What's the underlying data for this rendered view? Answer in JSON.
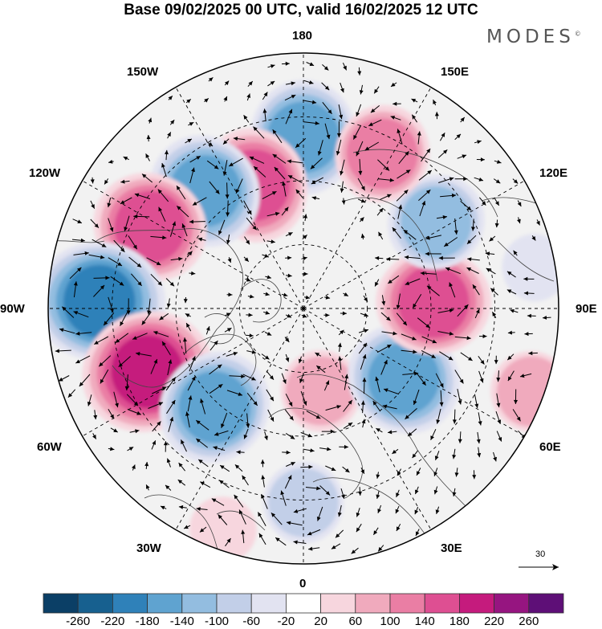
{
  "title": "Base 09/02/2025 00 UTC, valid 16/02/2025 12 UTC",
  "brand": "MODES",
  "brand_mark": "©",
  "longitude_labels": {
    "lon_180": "180",
    "lon_150w": "150W",
    "lon_150e": "150E",
    "lon_120w": "120W",
    "lon_120e": "120E",
    "lon_90w": "90W",
    "lon_90e": "90E",
    "lon_60w": "60W",
    "lon_60e": "60E",
    "lon_30w": "30W",
    "lon_30e": "30E",
    "lon_0": "0"
  },
  "reference_vector": {
    "label": "30"
  },
  "colorbar": {
    "ticks": [
      "-260",
      "-220",
      "-180",
      "-140",
      "-100",
      "-60",
      "-20",
      "20",
      "60",
      "100",
      "140",
      "180",
      "220",
      "260"
    ],
    "colors": [
      "#0b3f66",
      "#17608f",
      "#2f81b9",
      "#5fa3d0",
      "#93bde0",
      "#c2cfe8",
      "#e2e3f1",
      "#ffffff",
      "#f7d6de",
      "#f0aabd",
      "#ea7ea4",
      "#de4f92",
      "#c51b7d",
      "#961580",
      "#5e0f77"
    ]
  },
  "anomalies": [
    {
      "lon": 180,
      "r": 0.67,
      "value": -150
    },
    {
      "lon": -158,
      "r": 0.52,
      "value": 170
    },
    {
      "lon": -140,
      "r": 0.6,
      "value": -160
    },
    {
      "lon": -118,
      "r": 0.68,
      "value": 140
    },
    {
      "lon": -92,
      "r": 0.8,
      "value": -210
    },
    {
      "lon": -68,
      "r": 0.66,
      "value": 200
    },
    {
      "lon": -42,
      "r": 0.52,
      "value": -140
    },
    {
      "lon": 12,
      "r": 0.33,
      "value": 80
    },
    {
      "lon": 0,
      "r": 0.76,
      "value": -90
    },
    {
      "lon": 55,
      "r": 0.48,
      "value": -150
    },
    {
      "lon": 93,
      "r": 0.51,
      "value": 150
    },
    {
      "lon": 123,
      "r": 0.62,
      "value": -130
    },
    {
      "lon": 153,
      "r": 0.68,
      "value": 120
    },
    {
      "lon": 70,
      "r": 0.95,
      "value": 60
    },
    {
      "lon": -20,
      "r": 0.92,
      "value": 50
    },
    {
      "lon": 100,
      "r": 0.92,
      "value": -30
    }
  ]
}
